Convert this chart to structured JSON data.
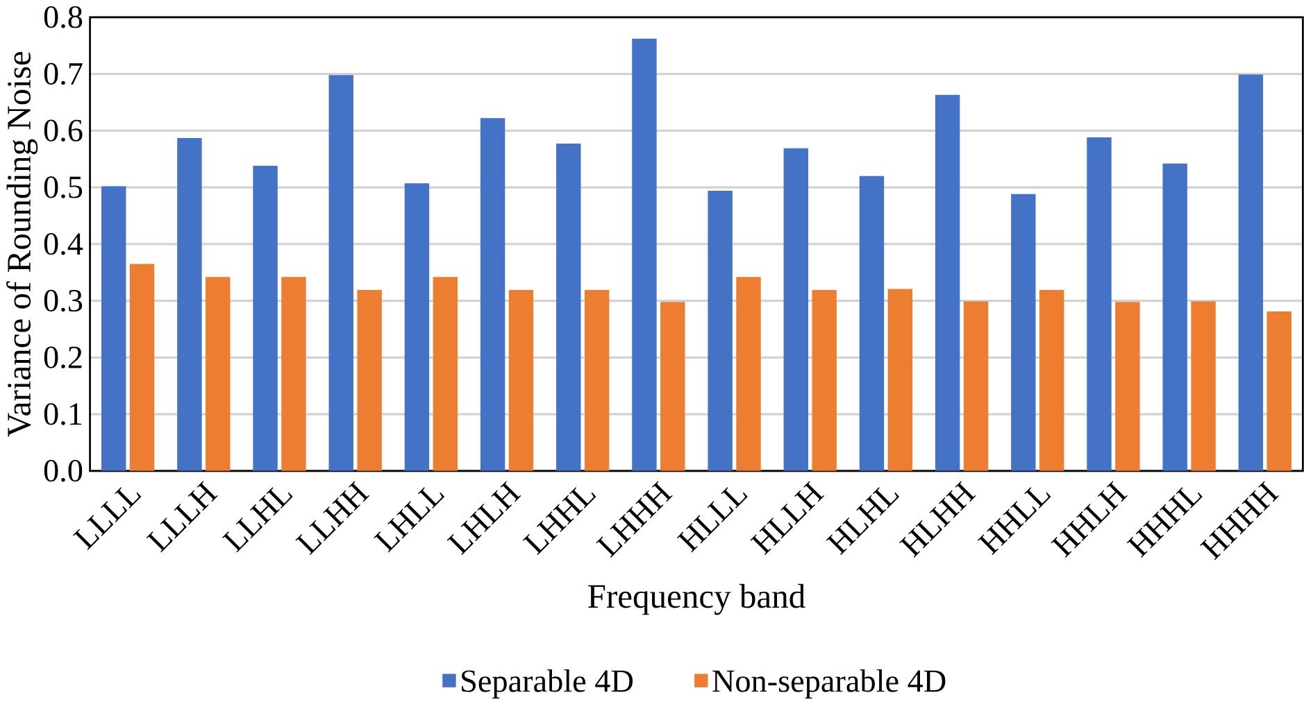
{
  "chart_data": {
    "type": "bar",
    "xlabel": "Frequency band",
    "ylabel": "Variance of Rounding Noise",
    "categories": [
      "LLLL",
      "LLLH",
      "LLHL",
      "LLHH",
      "LHLL",
      "LHLH",
      "LHHL",
      "LHHH",
      "HLLL",
      "HLLH",
      "HLHL",
      "HLHH",
      "HHLL",
      "HHLH",
      "HHHL",
      "HHHH"
    ],
    "series": [
      {
        "name": "Separable 4D",
        "color": "#4472c4",
        "values": [
          0.502,
          0.587,
          0.538,
          0.698,
          0.507,
          0.622,
          0.577,
          0.762,
          0.494,
          0.569,
          0.52,
          0.663,
          0.488,
          0.588,
          0.542,
          0.699
        ]
      },
      {
        "name": "Non-separable 4D",
        "color": "#ed7d31",
        "values": [
          0.365,
          0.342,
          0.342,
          0.319,
          0.342,
          0.319,
          0.319,
          0.298,
          0.342,
          0.319,
          0.321,
          0.299,
          0.319,
          0.298,
          0.299,
          0.281
        ]
      }
    ],
    "ylim": [
      0,
      0.8
    ],
    "yticks": [
      {
        "value": 0,
        "label": "0.0"
      },
      0.1,
      0.2,
      0.3,
      0.4,
      0.5,
      0.6,
      0.7,
      0.8
    ],
    "grid": "y",
    "legend": "bottom"
  }
}
